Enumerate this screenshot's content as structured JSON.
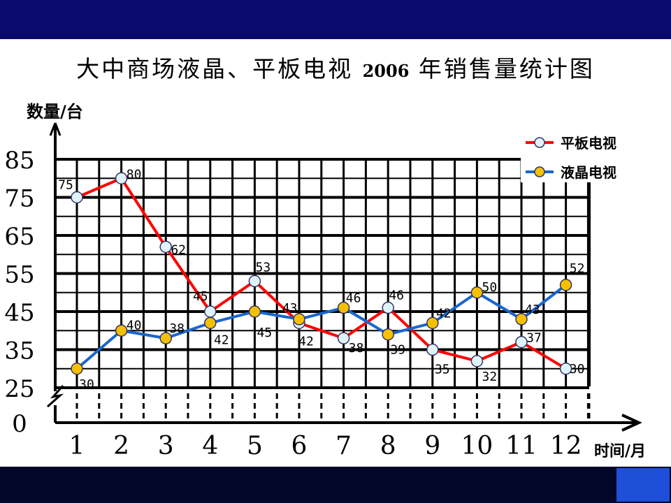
{
  "title": {
    "before": "大中商场液晶、平板电视",
    "year": "2006",
    "after": "年销售量统计图"
  },
  "colors": {
    "top_band": "#0a0a6e",
    "bottom_band": "#020628",
    "corner_box": "#1f4fd8",
    "flat_tv_line": "#ff0000",
    "flat_tv_marker": "#dff4f8",
    "lcd_tv_line": "#1a66cc",
    "lcd_tv_marker": "#f5c000"
  },
  "chart_data": {
    "type": "line",
    "ylabel": "数量/台",
    "xlabel": "时间/月",
    "x": [
      "1",
      "2",
      "3",
      "4",
      "5",
      "6",
      "7",
      "8",
      "9",
      "10",
      "11",
      "12"
    ],
    "y_ticks": [
      0,
      25,
      35,
      45,
      55,
      65,
      75,
      85
    ],
    "ylim": [
      0,
      85
    ],
    "y_axis_break": true,
    "grid": true,
    "legend": "top-right",
    "series": [
      {
        "name": "平板电视",
        "color": "#ff0000",
        "marker": "light-blue circle",
        "values": [
          75,
          80,
          62,
          45,
          53,
          42,
          38,
          46,
          35,
          32,
          37,
          30
        ],
        "labels": [
          "75",
          "80",
          "62",
          "45",
          "53",
          "42",
          "38",
          "46",
          "35",
          "32",
          "37",
          "30"
        ]
      },
      {
        "name": "液晶电视",
        "color": "#1a66cc",
        "marker": "yellow circle",
        "values": [
          30,
          40,
          38,
          42,
          45,
          43,
          46,
          39,
          42,
          50,
          43,
          52
        ],
        "labels": [
          "30",
          "40",
          "38",
          "42",
          "45",
          "43.",
          "46",
          "39",
          "42",
          "50",
          "43",
          "52"
        ]
      }
    ]
  }
}
